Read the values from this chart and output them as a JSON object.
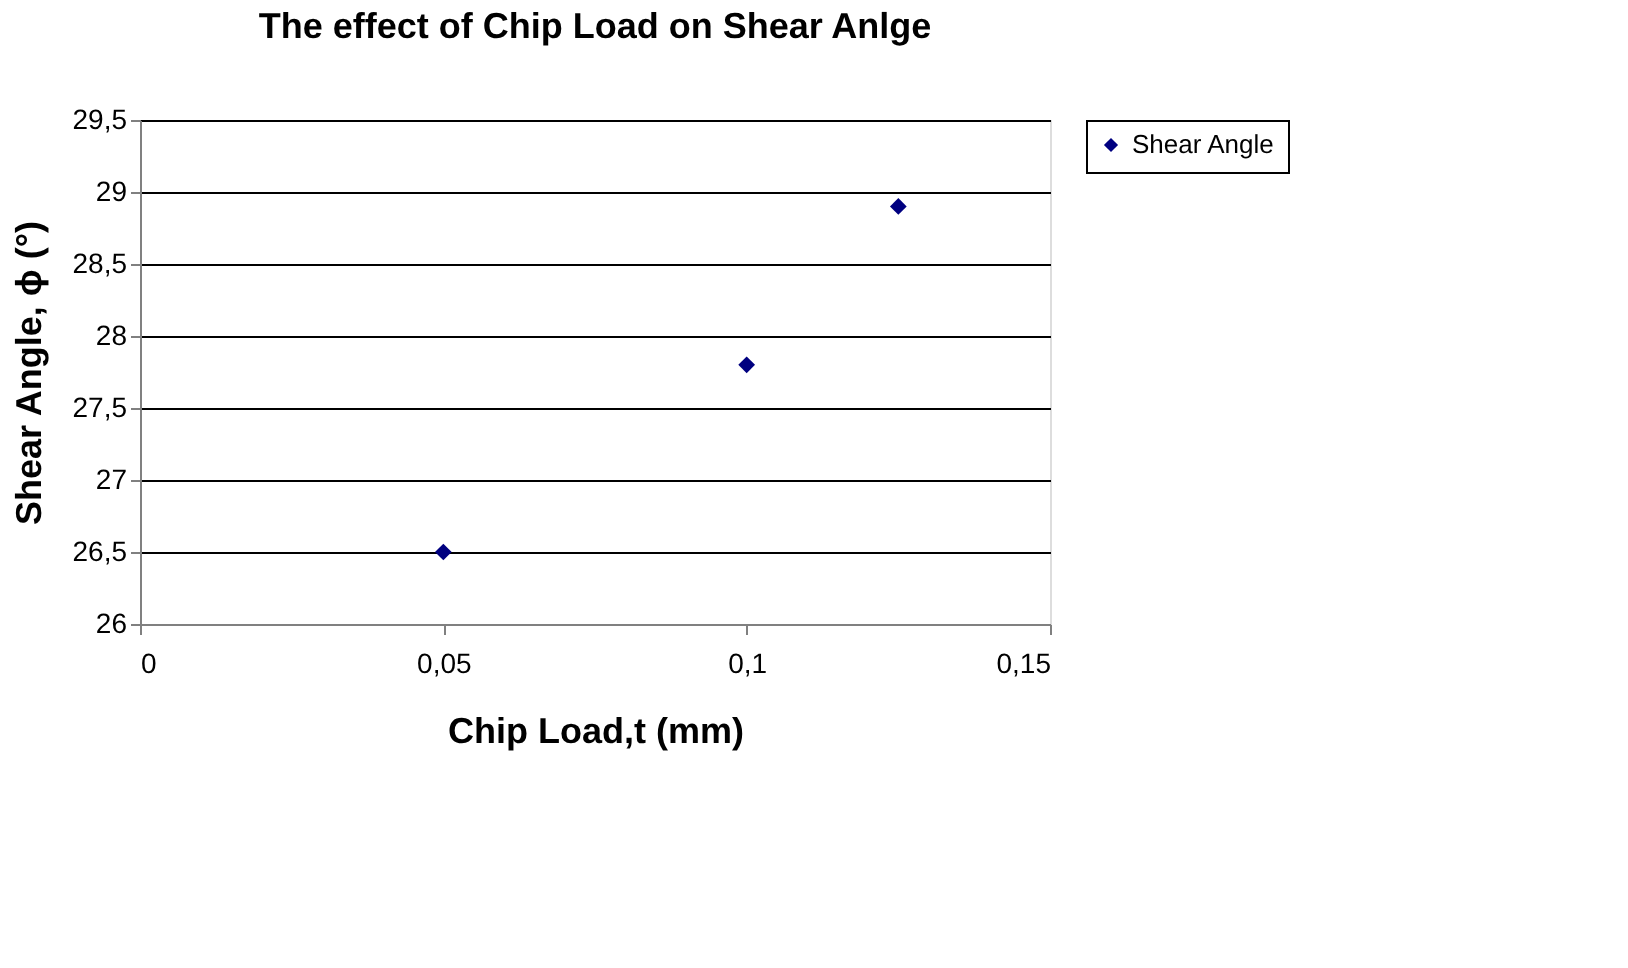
{
  "chart_data": {
    "type": "scatter",
    "title": "The effect of Chip Load on Shear Anlge",
    "xlabel": "Chip Load,t (mm)",
    "ylabel": "Shear Angle,   ϕ  (°)",
    "x": [
      0.05,
      0.1,
      0.125
    ],
    "series": [
      {
        "name": "Shear Angle",
        "color": "#000080",
        "values": [
          26.5,
          27.8,
          28.9
        ]
      }
    ],
    "xlim": [
      0,
      0.15
    ],
    "xticks": [
      0,
      {
        "value": 0.05,
        "label": "0,05"
      },
      {
        "value": 0.1,
        "label": "0,1"
      },
      {
        "value": 0.15,
        "label": "0,15"
      }
    ],
    "ylim": [
      26,
      29.5
    ],
    "yticks": [
      26,
      {
        "value": 26.5,
        "label": "26,5"
      },
      27,
      {
        "value": 27.5,
        "label": "27,5"
      },
      28,
      {
        "value": 28.5,
        "label": "28,5"
      },
      29,
      {
        "value": 29.5,
        "label": "29,5"
      }
    ],
    "grid": "y",
    "legend": "right",
    "marker": "diamond"
  }
}
